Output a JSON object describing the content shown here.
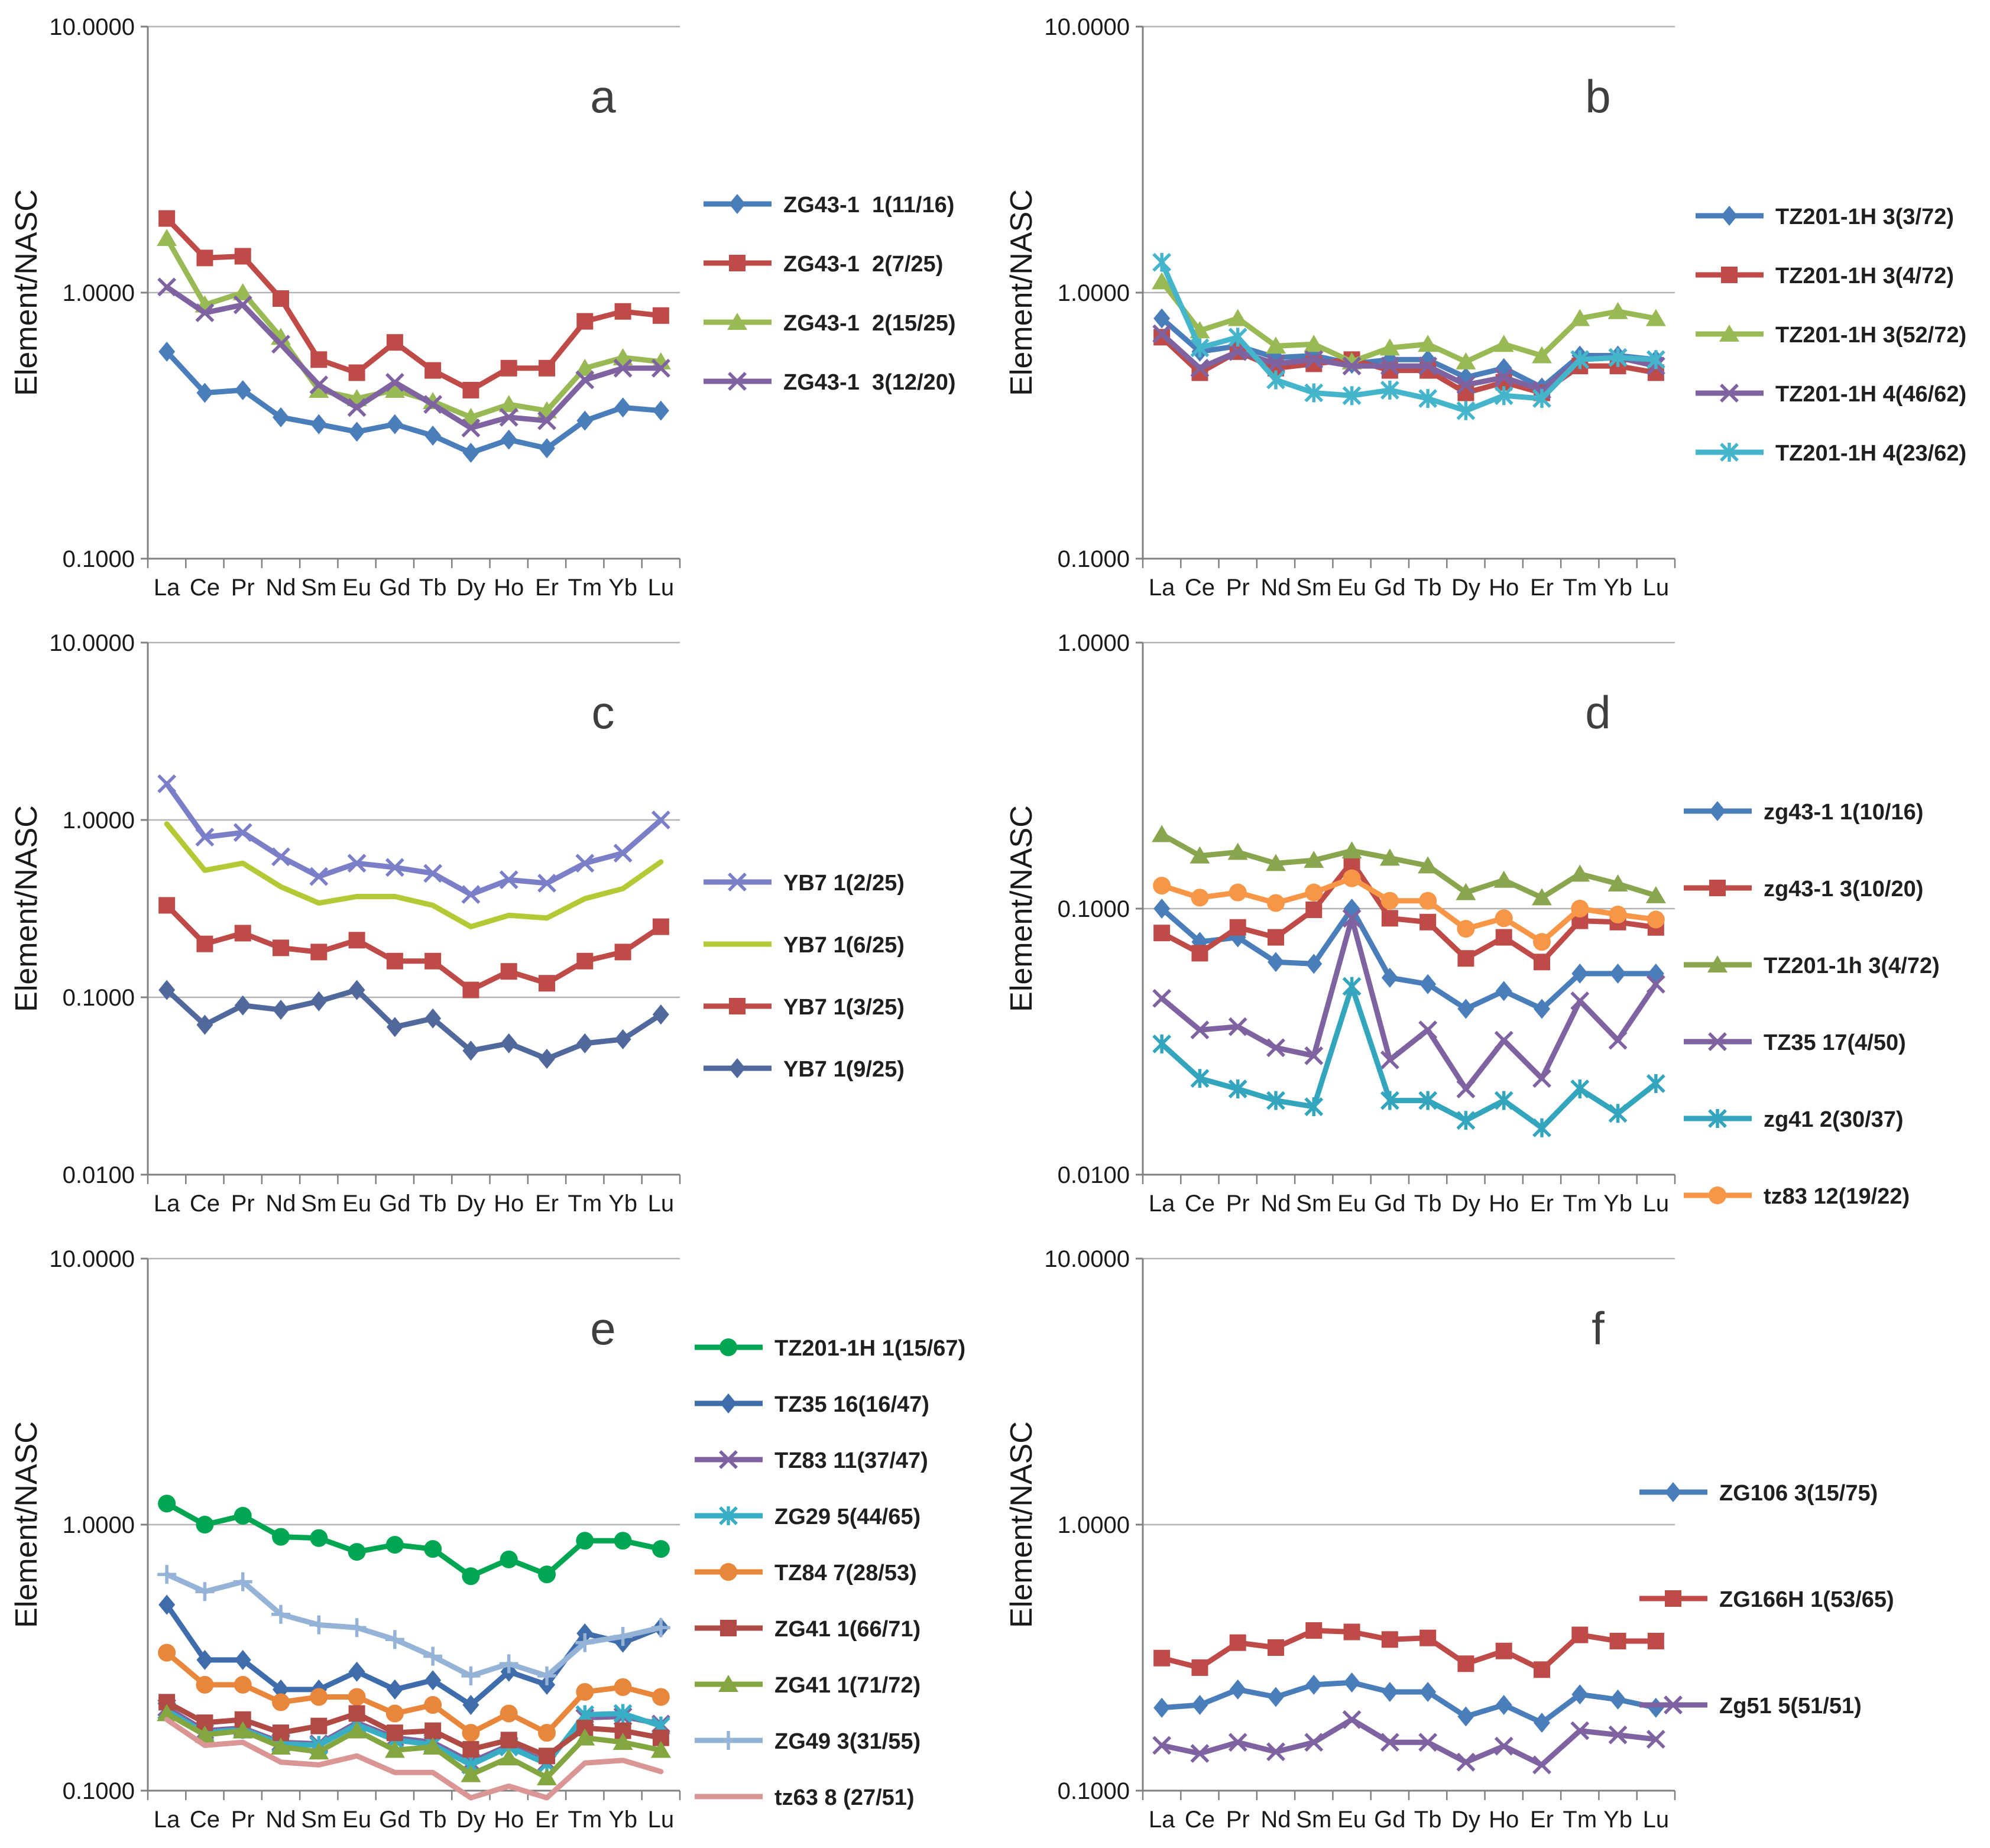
{
  "figure": {
    "y_axis_label": "Element/NASC",
    "categories": [
      "La",
      "Ce",
      "Pr",
      "Nd",
      "Sm",
      "Eu",
      "Gd",
      "Tb",
      "Dy",
      "Ho",
      "Er",
      "Tm",
      "Yb",
      "Lu"
    ]
  },
  "chart_data": [
    {
      "type": "line",
      "letter": "a",
      "ylabel": "Element/NASC",
      "ylim": [
        0.1,
        10
      ],
      "ytick_labels": [
        "10.0000",
        "1.0000",
        "0.1000"
      ],
      "categories": [
        "La",
        "Ce",
        "Pr",
        "Nd",
        "Sm",
        "Eu",
        "Gd",
        "Tb",
        "Dy",
        "Ho",
        "Er",
        "Tm",
        "Yb",
        "Lu"
      ],
      "grid": "horizontal-decades",
      "legend_position": "right",
      "legend_pos": {
        "x": 1190,
        "y": 345,
        "dy": 100
      },
      "series": [
        {
          "name": "ZG43-1  1(11/16)",
          "color": "#4A7EBB",
          "marker": "diamond",
          "values": [
            0.6,
            0.42,
            0.43,
            0.34,
            0.32,
            0.3,
            0.32,
            0.29,
            0.25,
            0.28,
            0.26,
            0.33,
            0.37,
            0.36
          ]
        },
        {
          "name": "ZG43-1  2(7/25)",
          "color": "#BE4B48",
          "marker": "square",
          "values": [
            1.9,
            1.35,
            1.37,
            0.95,
            0.56,
            0.5,
            0.65,
            0.51,
            0.43,
            0.52,
            0.52,
            0.78,
            0.85,
            0.82
          ]
        },
        {
          "name": "ZG43-1  2(15/25)",
          "color": "#98B954",
          "marker": "triangle",
          "values": [
            1.6,
            0.9,
            1.0,
            0.68,
            0.43,
            0.4,
            0.43,
            0.39,
            0.34,
            0.38,
            0.36,
            0.52,
            0.57,
            0.55
          ]
        },
        {
          "name": "ZG43-1  3(12/20)",
          "color": "#7F63A1",
          "marker": "x",
          "values": [
            1.05,
            0.84,
            0.9,
            0.64,
            0.45,
            0.37,
            0.46,
            0.38,
            0.31,
            0.34,
            0.33,
            0.47,
            0.52,
            0.52
          ]
        }
      ]
    },
    {
      "type": "line",
      "letter": "b",
      "ylabel": "Element/NASC",
      "ylim": [
        0.1,
        10
      ],
      "ytick_labels": [
        "10.0000",
        "1.0000",
        "0.1000"
      ],
      "categories": [
        "La",
        "Ce",
        "Pr",
        "Nd",
        "Sm",
        "Eu",
        "Gd",
        "Tb",
        "Dy",
        "Ho",
        "Er",
        "Tm",
        "Yb",
        "Lu"
      ],
      "grid": "horizontal-decades",
      "legend_position": "right",
      "legend_pos": {
        "x": 1185,
        "y": 365,
        "dy": 100
      },
      "series": [
        {
          "name": "TZ201-1H 3(3/72)",
          "color": "#4A7EBB",
          "marker": "diamond",
          "values": [
            0.8,
            0.6,
            0.63,
            0.57,
            0.58,
            0.54,
            0.56,
            0.56,
            0.48,
            0.52,
            0.44,
            0.58,
            0.58,
            0.56
          ]
        },
        {
          "name": "TZ201-1H 3(4/72)",
          "color": "#BE4B48",
          "marker": "square",
          "values": [
            0.68,
            0.5,
            0.6,
            0.52,
            0.54,
            0.56,
            0.51,
            0.51,
            0.42,
            0.46,
            0.42,
            0.53,
            0.53,
            0.5
          ]
        },
        {
          "name": "TZ201-1H 3(52/72)",
          "color": "#98B954",
          "marker": "triangle",
          "values": [
            1.1,
            0.72,
            0.8,
            0.63,
            0.64,
            0.55,
            0.62,
            0.64,
            0.55,
            0.64,
            0.58,
            0.8,
            0.85,
            0.8
          ]
        },
        {
          "name": "TZ201-1H 4(46/62)",
          "color": "#7F63A1",
          "marker": "x",
          "values": [
            0.7,
            0.52,
            0.6,
            0.54,
            0.56,
            0.53,
            0.53,
            0.53,
            0.45,
            0.48,
            0.43,
            0.56,
            0.57,
            0.53
          ]
        },
        {
          "name": "TZ201-1H 4(23/62)",
          "color": "#45B5CC",
          "marker": "asterisk",
          "values": [
            1.3,
            0.62,
            0.68,
            0.47,
            0.42,
            0.41,
            0.43,
            0.4,
            0.36,
            0.41,
            0.4,
            0.56,
            0.57,
            0.56
          ]
        }
      ]
    },
    {
      "type": "line",
      "letter": "c",
      "ylabel": "Element/NASC",
      "ylim": [
        0.01,
        10
      ],
      "ytick_labels": [
        "10.0000",
        "1.0000",
        "0.1000",
        "0.0100"
      ],
      "categories": [
        "La",
        "Ce",
        "Pr",
        "Nd",
        "Sm",
        "Eu",
        "Gd",
        "Tb",
        "Dy",
        "Ho",
        "Er",
        "Tm",
        "Yb",
        "Lu"
      ],
      "grid": "horizontal-decades",
      "legend_position": "right",
      "legend_pos": {
        "x": 1190,
        "y": 450,
        "dy": 105
      },
      "series": [
        {
          "name": "YB7 1(2/25)",
          "color": "#7B7FC7",
          "marker": "x",
          "values": [
            1.6,
            0.8,
            0.85,
            0.62,
            0.48,
            0.57,
            0.54,
            0.5,
            0.38,
            0.46,
            0.44,
            0.57,
            0.65,
            1.0
          ]
        },
        {
          "name": "YB7 1(6/25)",
          "color": "#B5C936",
          "marker": "none",
          "values": [
            0.95,
            0.52,
            0.57,
            0.42,
            0.34,
            0.37,
            0.37,
            0.33,
            0.25,
            0.29,
            0.28,
            0.36,
            0.41,
            0.58
          ]
        },
        {
          "name": "YB7 1(3/25)",
          "color": "#BE4B48",
          "marker": "square",
          "values": [
            0.33,
            0.2,
            0.23,
            0.19,
            0.18,
            0.21,
            0.16,
            0.16,
            0.11,
            0.14,
            0.12,
            0.16,
            0.18,
            0.25
          ]
        },
        {
          "name": "YB7 1(9/25)",
          "color": "#50689C",
          "marker": "diamond",
          "values": [
            0.11,
            0.07,
            0.09,
            0.085,
            0.095,
            0.11,
            0.068,
            0.076,
            0.05,
            0.055,
            0.045,
            0.055,
            0.058,
            0.08
          ]
        }
      ]
    },
    {
      "type": "line",
      "letter": "d",
      "ylabel": "Element/NASC",
      "ylim": [
        0.01,
        1
      ],
      "ytick_labels": [
        "1.0000",
        "0.1000",
        "0.0100"
      ],
      "categories": [
        "La",
        "Ce",
        "Pr",
        "Nd",
        "Sm",
        "Eu",
        "Gd",
        "Tb",
        "Dy",
        "Ho",
        "Er",
        "Tm",
        "Yb",
        "Lu"
      ],
      "grid": "horizontal-decades",
      "legend_position": "right",
      "legend_pos": {
        "x": 1165,
        "y": 330,
        "dy": 130
      },
      "series": [
        {
          "name": "zg43-1 1(10/16)",
          "color": "#4A7EBB",
          "marker": "diamond",
          "values": [
            0.1,
            0.075,
            0.078,
            0.063,
            0.062,
            0.1,
            0.055,
            0.052,
            0.042,
            0.049,
            0.042,
            0.057,
            0.057,
            0.057
          ]
        },
        {
          "name": "zg43-1 3(10/20)",
          "color": "#BE4B48",
          "marker": "square",
          "values": [
            0.081,
            0.068,
            0.085,
            0.078,
            0.099,
            0.15,
            0.092,
            0.089,
            0.065,
            0.078,
            0.063,
            0.09,
            0.089,
            0.085
          ]
        },
        {
          "name": "TZ201-1h 3(4/72)",
          "color": "#89A54E",
          "marker": "triangle",
          "values": [
            0.19,
            0.158,
            0.163,
            0.148,
            0.152,
            0.165,
            0.155,
            0.145,
            0.115,
            0.128,
            0.11,
            0.135,
            0.124,
            0.112
          ]
        },
        {
          "name": "TZ35 17(4/50)",
          "color": "#7F63A1",
          "marker": "x",
          "values": [
            0.046,
            0.035,
            0.036,
            0.03,
            0.028,
            0.092,
            0.027,
            0.035,
            0.021,
            0.032,
            0.023,
            0.045,
            0.032,
            0.052
          ]
        },
        {
          "name": "zg41 2(30/37)",
          "color": "#33A5BC",
          "marker": "asterisk",
          "values": [
            0.031,
            0.023,
            0.021,
            0.019,
            0.018,
            0.051,
            0.019,
            0.019,
            0.016,
            0.019,
            0.015,
            0.021,
            0.017,
            0.022
          ]
        },
        {
          "name": "tz83 12(19/22)",
          "color": "#F79646",
          "marker": "circle",
          "values": [
            0.122,
            0.11,
            0.115,
            0.105,
            0.115,
            0.13,
            0.107,
            0.107,
            0.084,
            0.092,
            0.075,
            0.1,
            0.095,
            0.091
          ]
        }
      ]
    },
    {
      "type": "line",
      "letter": "e",
      "ylabel": "Element/NASC",
      "ylim": [
        0.1,
        10
      ],
      "ytick_labels": [
        "10.0000",
        "1.0000",
        "0.1000"
      ],
      "categories": [
        "La",
        "Ce",
        "Pr",
        "Nd",
        "Sm",
        "Eu",
        "Gd",
        "Tb",
        "Dy",
        "Ho",
        "Er",
        "Tm",
        "Yb",
        "Lu"
      ],
      "grid": "horizontal-decades",
      "legend_position": "right",
      "legend_pos": {
        "x": 1175,
        "y": 195,
        "dy": 95
      },
      "series": [
        {
          "name": "TZ201-1H 1(15/67)",
          "color": "#00A651",
          "marker": "circle",
          "values": [
            1.2,
            1.0,
            1.08,
            0.9,
            0.89,
            0.79,
            0.84,
            0.81,
            0.64,
            0.74,
            0.65,
            0.87,
            0.87,
            0.81
          ]
        },
        {
          "name": "TZ35 16(16/47)",
          "color": "#3F6CAA",
          "marker": "diamond",
          "values": [
            0.5,
            0.31,
            0.31,
            0.24,
            0.24,
            0.28,
            0.24,
            0.26,
            0.21,
            0.28,
            0.25,
            0.39,
            0.36,
            0.41
          ]
        },
        {
          "name": "TZ83 11(37/47)",
          "color": "#7F63A1",
          "marker": "x",
          "values": [
            0.205,
            0.168,
            0.172,
            0.152,
            0.15,
            0.18,
            0.158,
            0.152,
            0.128,
            0.148,
            0.128,
            0.188,
            0.19,
            0.178
          ]
        },
        {
          "name": "ZG29 5(44/65)",
          "color": "#38AEC4",
          "marker": "asterisk",
          "values": [
            0.2,
            0.165,
            0.17,
            0.15,
            0.148,
            0.177,
            0.155,
            0.149,
            0.125,
            0.146,
            0.126,
            0.193,
            0.195,
            0.175
          ]
        },
        {
          "name": "TZ84 7(28/53)",
          "color": "#E8873C",
          "marker": "circle",
          "values": [
            0.33,
            0.25,
            0.25,
            0.215,
            0.225,
            0.225,
            0.195,
            0.21,
            0.165,
            0.195,
            0.165,
            0.235,
            0.245,
            0.225
          ]
        },
        {
          "name": "ZG41 1(66/71)",
          "color": "#B04A45",
          "marker": "square",
          "values": [
            0.215,
            0.18,
            0.185,
            0.165,
            0.175,
            0.195,
            0.165,
            0.168,
            0.143,
            0.155,
            0.135,
            0.172,
            0.168,
            0.158
          ]
        },
        {
          "name": "ZG41 1(71/72)",
          "color": "#84A640",
          "marker": "triangle",
          "values": [
            0.195,
            0.162,
            0.168,
            0.146,
            0.14,
            0.168,
            0.142,
            0.146,
            0.115,
            0.133,
            0.112,
            0.158,
            0.152,
            0.142
          ]
        },
        {
          "name": "ZG49 3(31/55)",
          "color": "#95B3D7",
          "marker": "plus",
          "values": [
            0.65,
            0.56,
            0.61,
            0.46,
            0.42,
            0.41,
            0.37,
            0.32,
            0.27,
            0.3,
            0.27,
            0.36,
            0.38,
            0.41
          ]
        },
        {
          "name": "tz63 8 (27/51)",
          "color": "#D99694",
          "marker": "none",
          "values": [
            0.185,
            0.148,
            0.152,
            0.128,
            0.125,
            0.135,
            0.117,
            0.117,
            0.094,
            0.104,
            0.094,
            0.127,
            0.13,
            0.118
          ]
        }
      ]
    },
    {
      "type": "line",
      "letter": "f",
      "ylabel": "Element/NASC",
      "ylim": [
        0.1,
        10
      ],
      "ytick_labels": [
        "10.0000",
        "1.0000",
        "0.1000"
      ],
      "categories": [
        "La",
        "Ce",
        "Pr",
        "Nd",
        "Sm",
        "Eu",
        "Gd",
        "Tb",
        "Dy",
        "Ho",
        "Er",
        "Tm",
        "Yb",
        "Lu"
      ],
      "grid": "horizontal-decades",
      "legend_position": "right",
      "legend_pos": {
        "x": 1090,
        "y": 440,
        "dy": 180
      },
      "series": [
        {
          "name": "ZG106 3(15/75)",
          "color": "#4A7EBB",
          "marker": "diamond",
          "values": [
            0.205,
            0.21,
            0.24,
            0.225,
            0.25,
            0.255,
            0.235,
            0.235,
            0.19,
            0.21,
            0.18,
            0.23,
            0.22,
            0.205
          ]
        },
        {
          "name": "ZG166H 1(53/65)",
          "color": "#BE4B48",
          "marker": "square",
          "values": [
            0.315,
            0.29,
            0.36,
            0.345,
            0.4,
            0.395,
            0.37,
            0.375,
            0.3,
            0.335,
            0.285,
            0.385,
            0.365,
            0.365
          ]
        },
        {
          "name": "Zg51 5(51/51)",
          "color": "#7F63A1",
          "marker": "x",
          "values": [
            0.148,
            0.138,
            0.152,
            0.14,
            0.152,
            0.185,
            0.152,
            0.152,
            0.128,
            0.147,
            0.125,
            0.168,
            0.162,
            0.156
          ]
        }
      ]
    }
  ]
}
